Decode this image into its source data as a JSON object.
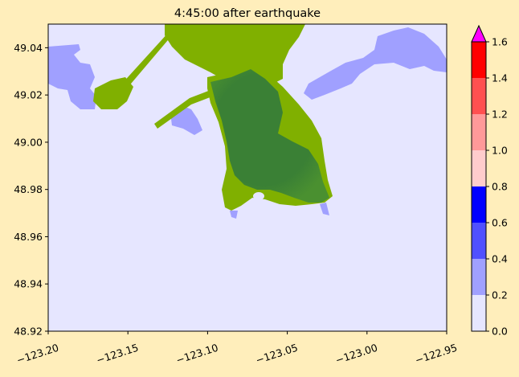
{
  "chart_data": {
    "type": "heatmap",
    "title": "4:45:00 after earthquake",
    "xlim": [
      -123.2,
      -122.95
    ],
    "ylim": [
      48.92,
      49.05
    ],
    "x_ticks": [
      -123.2,
      -123.15,
      -123.1,
      -123.05,
      -123.0,
      -122.95
    ],
    "x_tick_labels": [
      "−123.20",
      "−123.15",
      "−123.10",
      "−123.05",
      "−123.00",
      "−122.95"
    ],
    "y_ticks": [
      48.92,
      48.94,
      48.96,
      48.98,
      49.0,
      49.02,
      49.04
    ],
    "y_tick_labels": [
      "48.92",
      "48.94",
      "48.96",
      "48.98",
      "49.00",
      "49.02",
      "49.04"
    ],
    "colorbar": {
      "levels": [
        0.0,
        0.2,
        0.4,
        0.6,
        0.8,
        1.0,
        1.2,
        1.4,
        1.6
      ],
      "tick_labels": [
        "0.0",
        "0.2",
        "0.4",
        "0.6",
        "0.8",
        "1.0",
        "1.2",
        "1.4",
        "1.6"
      ],
      "colors": [
        "#e6e6ff",
        "#a0a0ff",
        "#5050ff",
        "#0000ff",
        "#ffcccc",
        "#ff9999",
        "#ff5050",
        "#ff0000"
      ],
      "extend_max_color": "#ff00ff"
    },
    "colors": {
      "water_background": "#e6e6ff",
      "shallow_water": "#a0a0ff",
      "land_light": "#80b000",
      "land_dark": "#3a8035"
    }
  }
}
